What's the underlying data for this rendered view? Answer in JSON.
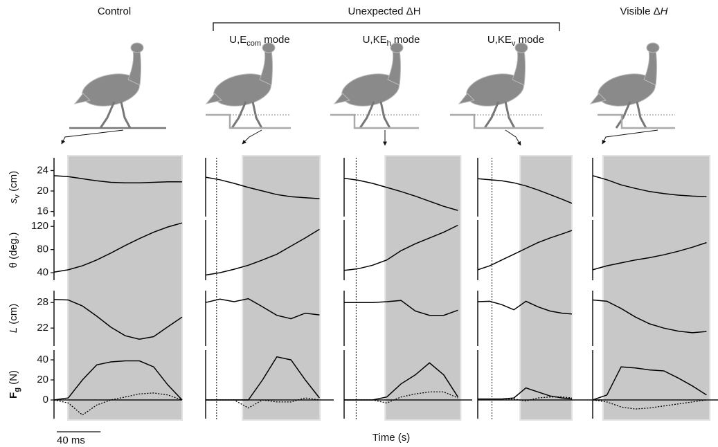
{
  "group_label": "Unexpected ΔH",
  "x_label": "Time (s)",
  "scalebar": {
    "label": "40 ms",
    "ms": 40
  },
  "chart_data": [
    {
      "type": "line",
      "title_parts": [
        "Control"
      ],
      "title_styles": [
        "normal"
      ],
      "x": [
        0,
        13,
        26,
        39,
        52,
        65,
        78,
        91,
        104,
        117
      ],
      "xlim": [
        0,
        117
      ],
      "shade": [
        12.7,
        117
      ],
      "rows": [
        {
          "ylabel_parts": [
            "s",
            "v",
            " (cm)"
          ],
          "ylabel_styles": [
            "italic",
            "sub",
            "normal"
          ],
          "ylim": [
            15,
            26.5
          ],
          "yticks": [
            24,
            20,
            16
          ],
          "series": [
            {
              "values": [
                23,
                22.8,
                22.4,
                22,
                21.7,
                21.6,
                21.6,
                21.7,
                21.8,
                21.8
              ],
              "color": "#000",
              "dash": false
            }
          ]
        },
        {
          "ylabel_parts": [
            "θ (deg.)"
          ],
          "ylabel_styles": [
            "normal"
          ],
          "ylim": [
            27,
            131
          ],
          "yticks": [
            120,
            80,
            40
          ],
          "series": [
            {
              "values": [
                41,
                45,
                52,
                62,
                74,
                87,
                99,
                110,
                119,
                126
              ],
              "color": "#000",
              "dash": false
            }
          ]
        },
        {
          "ylabel_parts": [
            "L",
            " (cm)"
          ],
          "ylabel_styles": [
            "italic",
            "normal"
          ],
          "ylim": [
            17.8,
            30.8
          ],
          "yticks": [
            28,
            22
          ],
          "series": [
            {
              "values": [
                28.7,
                28.6,
                27.2,
                24.8,
                22.2,
                20.2,
                19.4,
                20,
                22.3,
                24.6
              ],
              "color": "#000",
              "dash": false
            }
          ]
        },
        {
          "ylabel_parts": [
            "F",
            "g",
            " (N)"
          ],
          "ylabel_styles": [
            "bold",
            "boldsub",
            "normal"
          ],
          "ylim": [
            -18.6,
            49.7
          ],
          "yticks": [
            40,
            20,
            0
          ],
          "series": [
            {
              "values": [
                0,
                2,
                20,
                35,
                38,
                39,
                39,
                33,
                15,
                0
              ],
              "color": "#000",
              "dash": false
            },
            {
              "values": [
                0,
                -3,
                -15,
                -5,
                0,
                3,
                6,
                7,
                5,
                0
              ],
              "color": "#000",
              "dash": true
            }
          ]
        }
      ]
    },
    {
      "type": "line",
      "title_parts": [
        "U,E",
        "com",
        " mode"
      ],
      "title_styles": [
        "normal",
        "sub",
        "normal"
      ],
      "x": [
        0,
        13,
        26,
        39,
        52,
        65,
        78,
        91,
        104
      ],
      "xlim": [
        0,
        117
      ],
      "shade": [
        33.7,
        104.5
      ],
      "step": 10,
      "rows": [
        {
          "series": [
            {
              "values": [
                22.7,
                22.2,
                21.5,
                20.7,
                20,
                19.3,
                18.9,
                18.7,
                18.5
              ],
              "color": "#000",
              "dash": false
            }
          ]
        },
        {
          "series": [
            {
              "values": [
                36,
                40,
                46,
                53,
                62,
                72,
                86,
                100,
                115
              ],
              "color": "#000",
              "dash": false
            }
          ]
        },
        {
          "series": [
            {
              "values": [
                28,
                28.8,
                28.2,
                28.9,
                27,
                25,
                24.2,
                25.5,
                25.1
              ],
              "color": "#000",
              "dash": false
            }
          ]
        },
        {
          "series": [
            {
              "values": [
                0,
                0,
                0,
                0,
                20,
                43,
                40,
                20,
                2
              ],
              "color": "#000",
              "dash": false
            },
            {
              "values": [
                0,
                0,
                0,
                -8,
                0,
                -2,
                -2,
                2,
                0
              ],
              "color": "#000",
              "dash": true
            }
          ]
        }
      ]
    },
    {
      "type": "line",
      "title_parts": [
        "U,KE",
        "h",
        " mode"
      ],
      "title_styles": [
        "normal",
        "sub",
        "normal"
      ],
      "x": [
        0,
        13,
        26,
        39,
        52,
        65,
        78,
        91,
        104
      ],
      "xlim": [
        0,
        117
      ],
      "shade": [
        37.5,
        106.5
      ],
      "step": 11,
      "rows": [
        {
          "series": [
            {
              "values": [
                22.5,
                22.1,
                21.5,
                20.7,
                19.9,
                19,
                18,
                17,
                16.2
              ],
              "color": "#000",
              "dash": false
            }
          ]
        },
        {
          "series": [
            {
              "values": [
                44,
                47,
                53,
                62,
                78,
                90,
                100,
                110,
                122
              ],
              "color": "#000",
              "dash": false
            }
          ]
        },
        {
          "series": [
            {
              "values": [
                28,
                28,
                28,
                28.2,
                28.5,
                26,
                25,
                25,
                26.2
              ],
              "color": "#000",
              "dash": false
            }
          ]
        },
        {
          "series": [
            {
              "values": [
                0,
                0,
                0,
                3,
                16,
                25,
                37,
                25,
                3
              ],
              "color": "#000",
              "dash": false
            },
            {
              "values": [
                0,
                0,
                0,
                -3,
                3,
                6,
                8,
                8,
                2
              ],
              "color": "#000",
              "dash": true
            }
          ]
        }
      ]
    },
    {
      "type": "line",
      "title_parts": [
        "U,KE",
        "v",
        " mode"
      ],
      "title_styles": [
        "normal",
        "sub",
        "normal"
      ],
      "x": [
        0,
        11,
        22,
        33,
        44,
        55,
        66,
        77,
        86
      ],
      "xlim": [
        0,
        117
      ],
      "shade": [
        38.7,
        86
      ],
      "step": 13,
      "rows": [
        {
          "series": [
            {
              "values": [
                22.4,
                22.2,
                22,
                21.6,
                21,
                20.2,
                19.3,
                18.4,
                17.6
              ],
              "color": "#000",
              "dash": false
            }
          ]
        },
        {
          "series": [
            {
              "values": [
                45,
                52,
                62,
                72,
                82,
                92,
                100,
                107,
                113
              ],
              "color": "#000",
              "dash": false
            }
          ]
        },
        {
          "series": [
            {
              "values": [
                28.2,
                28.3,
                27.5,
                26.3,
                28.3,
                27,
                26,
                25.5,
                25.3
              ],
              "color": "#000",
              "dash": false
            }
          ]
        },
        {
          "series": [
            {
              "values": [
                1,
                1,
                1,
                2,
                12,
                8,
                4,
                2,
                1
              ],
              "color": "#000",
              "dash": false
            },
            {
              "values": [
                1,
                1,
                1,
                1,
                -1,
                2,
                3,
                3,
                2
              ],
              "color": "#000",
              "dash": true
            }
          ]
        }
      ]
    },
    {
      "type": "line",
      "title_parts": [
        "Visible Δ",
        "H"
      ],
      "title_styles": [
        "normal",
        "italic"
      ],
      "x": [
        0,
        13,
        26,
        39,
        52,
        65,
        78,
        91,
        104
      ],
      "xlim": [
        0,
        117
      ],
      "shade": [
        9.5,
        107
      ],
      "rows": [
        {
          "series": [
            {
              "values": [
                23,
                22.2,
                21.2,
                20.5,
                19.9,
                19.5,
                19.2,
                19,
                18.9
              ],
              "color": "#000",
              "dash": false
            }
          ]
        },
        {
          "series": [
            {
              "values": [
                45,
                52,
                57,
                62,
                66,
                71,
                77,
                84,
                92
              ],
              "color": "#000",
              "dash": false
            }
          ]
        },
        {
          "series": [
            {
              "values": [
                28.6,
                28.3,
                26.6,
                24.6,
                23,
                22,
                21.3,
                20.9,
                21.2
              ],
              "color": "#000",
              "dash": false
            }
          ]
        },
        {
          "series": [
            {
              "values": [
                0,
                5,
                33,
                32,
                30,
                29,
                22,
                14,
                5
              ],
              "color": "#000",
              "dash": false
            },
            {
              "values": [
                0,
                -2,
                -7,
                -9,
                -8,
                -6,
                -4,
                -2,
                0
              ],
              "color": "#000",
              "dash": true
            }
          ]
        }
      ]
    }
  ]
}
